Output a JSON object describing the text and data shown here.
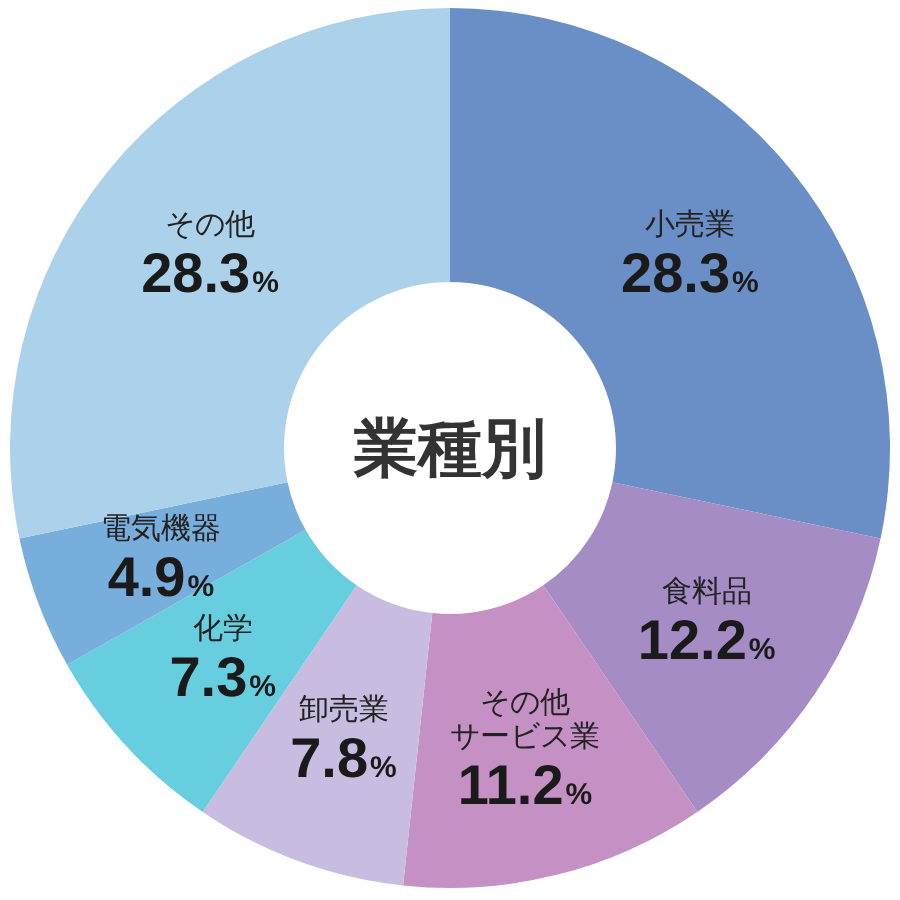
{
  "chart_data": {
    "type": "donut",
    "title": "業種別",
    "categories": [
      "小売業",
      "食料品",
      "その他サービス業",
      "卸売業",
      "化学",
      "電気機器",
      "その他"
    ],
    "values": [
      28.3,
      12.2,
      11.2,
      7.8,
      7.3,
      4.9,
      28.3
    ],
    "colors": [
      "#6a8fc7",
      "#a58cc5",
      "#c591c4",
      "#c8bde0",
      "#66cedf",
      "#77aedc",
      "#acd1ea"
    ],
    "value_labels": [
      "28.3%",
      "12.2%",
      "11.2%",
      "7.8%",
      "7.3%",
      "4.9%",
      "28.3%"
    ]
  }
}
